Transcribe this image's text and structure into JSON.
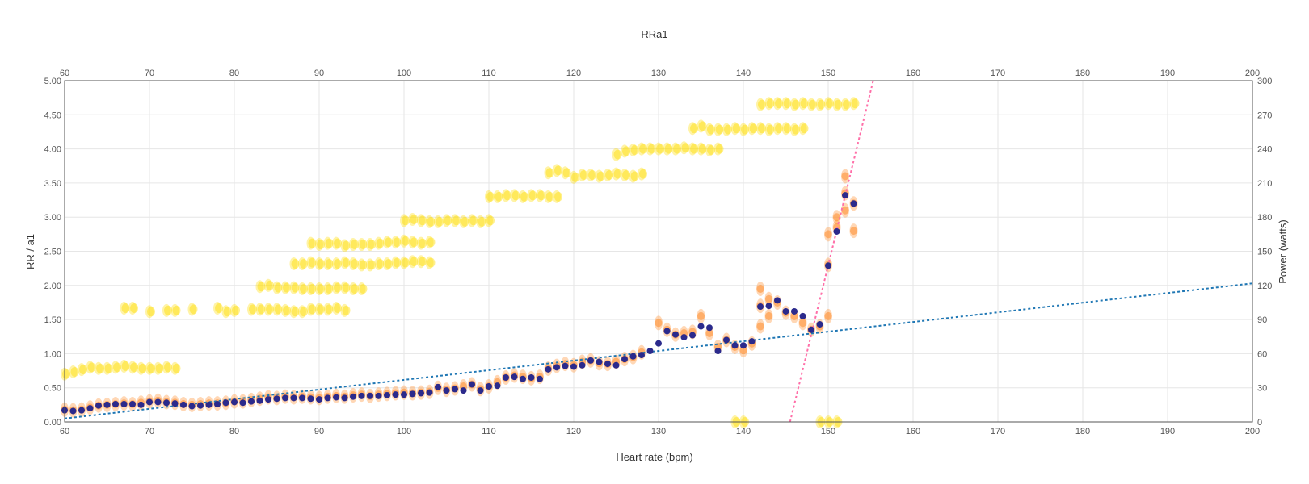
{
  "chart_data": {
    "type": "scatter",
    "title": "RRa1",
    "xlabel": "Heart rate (bpm)",
    "ylabel": "RR / a1",
    "y2label": "Power (watts)",
    "xlim": [
      60,
      200
    ],
    "ylim": [
      0,
      5
    ],
    "y2lim": [
      0,
      300
    ],
    "x_ticks": [
      60,
      70,
      80,
      90,
      100,
      110,
      120,
      130,
      140,
      150,
      160,
      170,
      180,
      190,
      200
    ],
    "x_ticks_top": [
      60,
      70,
      80,
      90,
      100,
      110,
      120,
      130,
      140,
      150,
      160,
      170,
      180,
      190,
      200
    ],
    "y_ticks": [
      "0.00",
      "0.50",
      "1.00",
      "1.50",
      "2.00",
      "2.50",
      "3.00",
      "3.50",
      "4.00",
      "4.50",
      "5.00"
    ],
    "y2_ticks": [
      0,
      30,
      60,
      90,
      120,
      150,
      180,
      210,
      240,
      270,
      300
    ],
    "grid": true,
    "colors": {
      "power": "#ffdd00",
      "a1": "#ff8c2a",
      "a1_mean": "#2b2a8c",
      "a1_trend": "#1f77b4",
      "power_trend": "#ff6fa8"
    },
    "power_series": [
      {
        "x": [
          60,
          61,
          62,
          63,
          64,
          65,
          66,
          67,
          68,
          69,
          70,
          71,
          72,
          73
        ],
        "y": [
          42,
          44,
          46,
          48,
          47,
          47,
          48,
          49,
          48,
          47,
          47,
          47,
          48,
          47
        ]
      },
      {
        "x": [
          67,
          68,
          70,
          72,
          73,
          75,
          78,
          79,
          80,
          82,
          83,
          84,
          85,
          86,
          87,
          88,
          89,
          90,
          91,
          92,
          93
        ],
        "y": [
          100,
          100,
          97,
          98,
          98,
          99,
          100,
          97,
          98,
          99,
          99,
          99,
          99,
          98,
          97,
          97,
          99,
          99,
          99,
          100,
          98
        ]
      },
      {
        "x": [
          83,
          84,
          85,
          86,
          87,
          88,
          89,
          90,
          91,
          92,
          93,
          94,
          95
        ],
        "y": [
          119,
          120,
          118,
          118,
          118,
          117,
          117,
          117,
          117,
          118,
          118,
          117,
          117
        ]
      },
      {
        "x": [
          87,
          88,
          89,
          90,
          91,
          92,
          93,
          94,
          95,
          96,
          97,
          98,
          99,
          100,
          101,
          102,
          103
        ],
        "y": [
          139,
          139,
          140,
          139,
          139,
          139,
          140,
          139,
          138,
          138,
          139,
          139,
          140,
          140,
          141,
          141,
          140
        ]
      },
      {
        "x": [
          89,
          90,
          91,
          92,
          93,
          94,
          95,
          96,
          97,
          98,
          99,
          100,
          101,
          102,
          103
        ],
        "y": [
          157,
          156,
          157,
          157,
          155,
          156,
          156,
          156,
          157,
          158,
          158,
          159,
          158,
          157,
          158
        ]
      },
      {
        "x": [
          100,
          101,
          102,
          103,
          104,
          105,
          106,
          107,
          108,
          109,
          110
        ],
        "y": [
          177,
          178,
          177,
          176,
          176,
          177,
          177,
          176,
          177,
          176,
          177
        ]
      },
      {
        "x": [
          110,
          111,
          112,
          113,
          114,
          115,
          116,
          117,
          118
        ],
        "y": [
          198,
          198,
          199,
          199,
          198,
          199,
          199,
          198,
          198
        ]
      },
      {
        "x": [
          117,
          118,
          119,
          120,
          121,
          122,
          123,
          124,
          125,
          126,
          127,
          128
        ],
        "y": [
          219,
          221,
          219,
          215,
          217,
          217,
          216,
          217,
          218,
          217,
          216,
          218
        ]
      },
      {
        "x": [
          125,
          126,
          127,
          128,
          129,
          130,
          131,
          132,
          133,
          134,
          135,
          136,
          137
        ],
        "y": [
          235,
          238,
          239,
          240,
          240,
          240,
          240,
          240,
          241,
          240,
          240,
          239,
          240
        ]
      },
      {
        "x": [
          134,
          135,
          136,
          137,
          138,
          139,
          140,
          141,
          142,
          143,
          144,
          145,
          146,
          147
        ],
        "y": [
          258,
          260,
          257,
          257,
          257,
          258,
          257,
          258,
          258,
          257,
          258,
          258,
          257,
          258
        ]
      },
      {
        "x": [
          142,
          143,
          144,
          145,
          146,
          147,
          148,
          149,
          150,
          151,
          152,
          153
        ],
        "y": [
          279,
          280,
          280,
          280,
          279,
          280,
          279,
          279,
          280,
          279,
          279,
          280
        ]
      },
      {
        "x": [
          139,
          140,
          149,
          150,
          151
        ],
        "y": [
          0,
          0,
          0,
          0,
          0
        ]
      }
    ],
    "a1_points": [
      {
        "x": [
          60,
          61,
          62,
          63,
          64,
          65,
          66,
          67,
          68,
          69,
          70,
          71,
          72,
          73,
          74,
          75,
          76,
          77,
          78,
          79,
          80
        ],
        "y": [
          0.18,
          0.17,
          0.18,
          0.21,
          0.24,
          0.25,
          0.26,
          0.27,
          0.26,
          0.28,
          0.3,
          0.31,
          0.29,
          0.28,
          0.26,
          0.25,
          0.26,
          0.27,
          0.27,
          0.28,
          0.3
        ]
      },
      {
        "x": [
          81,
          82,
          83,
          84,
          85,
          86,
          87,
          88,
          89,
          90,
          91,
          92,
          93,
          94,
          95,
          96,
          97,
          98,
          99,
          100,
          101,
          102,
          103
        ],
        "y": [
          0.3,
          0.32,
          0.34,
          0.36,
          0.35,
          0.37,
          0.36,
          0.37,
          0.36,
          0.35,
          0.37,
          0.38,
          0.37,
          0.39,
          0.4,
          0.38,
          0.4,
          0.41,
          0.42,
          0.43,
          0.42,
          0.43,
          0.44
        ]
      },
      {
        "x": [
          104,
          105,
          106,
          107,
          108,
          109,
          110,
          111,
          112,
          113,
          114,
          115,
          116,
          117,
          118,
          119,
          120,
          121,
          122,
          123,
          124,
          125,
          126,
          127,
          128
        ],
        "y": [
          0.5,
          0.47,
          0.49,
          0.52,
          0.55,
          0.48,
          0.52,
          0.58,
          0.65,
          0.68,
          0.66,
          0.64,
          0.66,
          0.78,
          0.82,
          0.85,
          0.83,
          0.88,
          0.9,
          0.86,
          0.85,
          0.88,
          0.92,
          0.95,
          1.02
        ]
      },
      {
        "x": [
          130,
          131,
          132,
          133,
          134,
          135,
          136,
          137,
          138,
          139,
          140,
          141
        ],
        "y": [
          1.45,
          1.35,
          1.28,
          1.3,
          1.32,
          1.55,
          1.3,
          1.1,
          1.2,
          1.1,
          1.05,
          1.15
        ]
      },
      {
        "x": [
          142,
          142,
          142,
          143,
          143,
          144,
          145,
          146,
          147,
          148,
          149,
          150
        ],
        "y": [
          1.95,
          1.7,
          1.4,
          1.8,
          1.55,
          1.75,
          1.6,
          1.55,
          1.45,
          1.35,
          1.4,
          1.55
        ]
      },
      {
        "x": [
          150,
          150,
          151,
          151,
          152,
          152,
          152,
          153,
          153
        ],
        "y": [
          2.75,
          2.3,
          2.85,
          3.0,
          3.35,
          3.6,
          3.1,
          3.2,
          2.8
        ]
      }
    ],
    "a1_mean_points": {
      "x": [
        60,
        61,
        62,
        63,
        64,
        65,
        66,
        67,
        68,
        69,
        70,
        71,
        72,
        73,
        74,
        75,
        76,
        77,
        78,
        79,
        80,
        81,
        82,
        83,
        84,
        85,
        86,
        87,
        88,
        89,
        90,
        91,
        92,
        93,
        94,
        95,
        96,
        97,
        98,
        99,
        100,
        101,
        102,
        103,
        104,
        105,
        106,
        107,
        108,
        109,
        110,
        111,
        112,
        113,
        114,
        115,
        116,
        117,
        118,
        119,
        120,
        121,
        122,
        123,
        124,
        125,
        126,
        127,
        128,
        129,
        130,
        131,
        132,
        133,
        134,
        135,
        136,
        137,
        138,
        139,
        140,
        141,
        142,
        143,
        144,
        145,
        146,
        147,
        148,
        149,
        150,
        151,
        152,
        153
      ],
      "y": [
        0.17,
        0.16,
        0.17,
        0.2,
        0.24,
        0.25,
        0.26,
        0.26,
        0.26,
        0.25,
        0.29,
        0.29,
        0.28,
        0.27,
        0.25,
        0.23,
        0.24,
        0.25,
        0.26,
        0.28,
        0.29,
        0.28,
        0.3,
        0.31,
        0.33,
        0.34,
        0.35,
        0.35,
        0.35,
        0.34,
        0.33,
        0.35,
        0.36,
        0.35,
        0.37,
        0.38,
        0.38,
        0.38,
        0.39,
        0.4,
        0.4,
        0.41,
        0.42,
        0.43,
        0.51,
        0.46,
        0.48,
        0.46,
        0.55,
        0.46,
        0.52,
        0.53,
        0.65,
        0.66,
        0.63,
        0.65,
        0.63,
        0.77,
        0.8,
        0.82,
        0.81,
        0.83,
        0.9,
        0.88,
        0.85,
        0.83,
        0.92,
        0.96,
        0.98,
        1.04,
        1.15,
        1.33,
        1.28,
        1.24,
        1.27,
        1.4,
        1.38,
        1.04,
        1.2,
        1.12,
        1.12,
        1.18,
        1.69,
        1.7,
        1.78,
        1.62,
        1.62,
        1.55,
        1.35,
        1.43,
        2.29,
        2.79,
        3.32,
        3.2
      ]
    },
    "a1_trend": {
      "x": [
        60,
        200
      ],
      "y": [
        0.05,
        2.03
      ]
    },
    "power_trend": {
      "x": [
        145.5,
        155.3
      ],
      "y2": [
        0,
        300
      ]
    }
  }
}
